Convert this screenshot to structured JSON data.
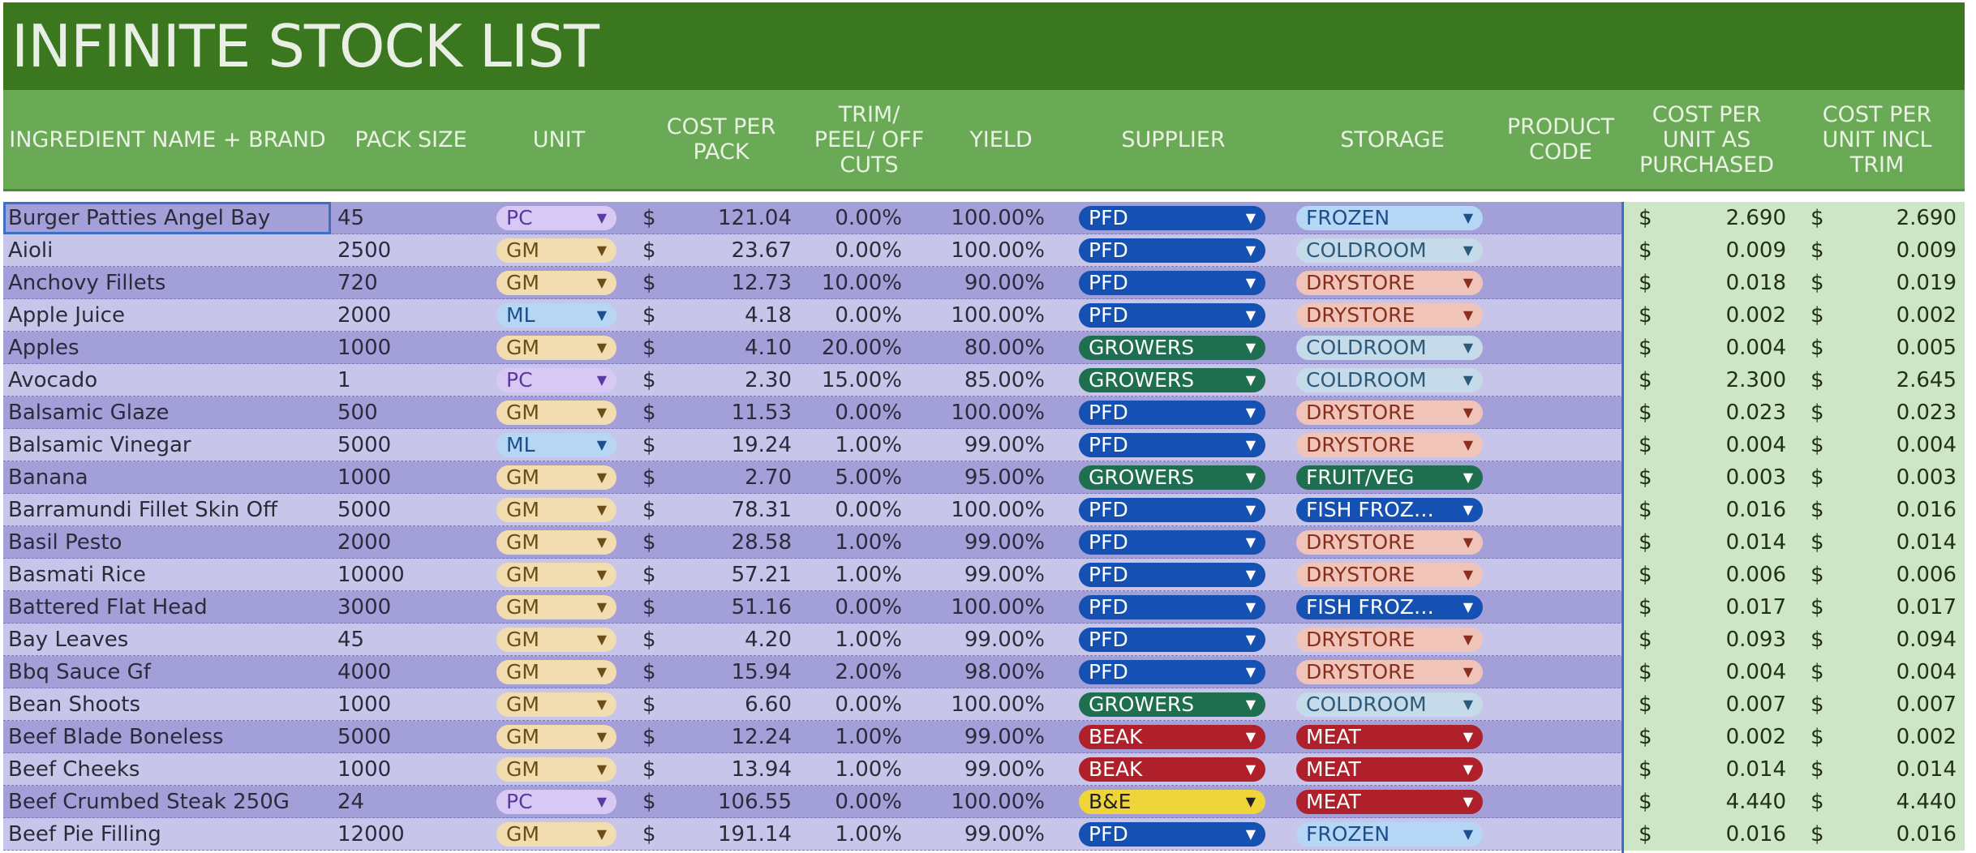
{
  "sheet": {
    "title": "INFINITE STOCK LIST"
  },
  "columns": {
    "name": "INGREDIENT NAME + BRAND",
    "pack_size": "PACK SIZE",
    "unit": "UNIT",
    "cost_per_pack": [
      "COST PER",
      "PACK"
    ],
    "trim": [
      "TRIM/",
      "PEEL/ OFF",
      "CUTS"
    ],
    "yield": "YIELD",
    "supplier": "SUPPLIER",
    "storage": "STORAGE",
    "product_code": [
      "PRODUCT",
      "CODE"
    ],
    "cost_unit_purchased": [
      "COST PER",
      "UNIT AS",
      "PURCHASED"
    ],
    "cost_unit_trim": [
      "COST PER",
      "UNIT INCL",
      "TRIM"
    ]
  },
  "currency_symbol": "$",
  "colors": {
    "unit": {
      "PC": [
        "#d8c9f4",
        "#5a3aa0"
      ],
      "GM": [
        "#f1ddb0",
        "#6b4e16"
      ],
      "ML": [
        "#b6d6f4",
        "#1d4f8c"
      ]
    },
    "supplier": {
      "PFD": "#1550b3",
      "GROWERS": "#1e6e50",
      "BEAK": "#b0202a",
      "B&E": "#f0d53a"
    },
    "storage": {
      "FROZEN": [
        "#b5d6f4",
        "#1d4f8c"
      ],
      "COLDROOM": [
        "#c6dbea",
        "#2b5a7a"
      ],
      "DRYSTORE": [
        "#f0c4b8",
        "#8a2f1e"
      ],
      "FRUIT/VEG": [
        "#1e6e50",
        "#ffffff"
      ],
      "FISH FROZ…": [
        "#1550b3",
        "#ffffff"
      ],
      "MEAT": [
        "#b0202a",
        "#ffffff"
      ]
    }
  },
  "rows": [
    {
      "name": "Burger Patties Angel Bay",
      "pack": "45",
      "unit": "PC",
      "cost": "121.04",
      "trim": "0.00%",
      "yield": "100.00%",
      "supplier": "PFD",
      "storage": "FROZEN",
      "cpu": "2.690",
      "cpt": "2.690"
    },
    {
      "name": "Aioli",
      "pack": "2500",
      "unit": "GM",
      "cost": "23.67",
      "trim": "0.00%",
      "yield": "100.00%",
      "supplier": "PFD",
      "storage": "COLDROOM",
      "cpu": "0.009",
      "cpt": "0.009"
    },
    {
      "name": "Anchovy Fillets",
      "pack": "720",
      "unit": "GM",
      "cost": "12.73",
      "trim": "10.00%",
      "yield": "90.00%",
      "supplier": "PFD",
      "storage": "DRYSTORE",
      "cpu": "0.018",
      "cpt": "0.019"
    },
    {
      "name": "Apple Juice",
      "pack": "2000",
      "unit": "ML",
      "cost": "4.18",
      "trim": "0.00%",
      "yield": "100.00%",
      "supplier": "PFD",
      "storage": "DRYSTORE",
      "cpu": "0.002",
      "cpt": "0.002"
    },
    {
      "name": "Apples",
      "pack": "1000",
      "unit": "GM",
      "cost": "4.10",
      "trim": "20.00%",
      "yield": "80.00%",
      "supplier": "GROWERS",
      "storage": "COLDROOM",
      "cpu": "0.004",
      "cpt": "0.005"
    },
    {
      "name": "Avocado",
      "pack": "1",
      "unit": "PC",
      "cost": "2.30",
      "trim": "15.00%",
      "yield": "85.00%",
      "supplier": "GROWERS",
      "storage": "COLDROOM",
      "cpu": "2.300",
      "cpt": "2.645"
    },
    {
      "name": "Balsamic Glaze",
      "pack": "500",
      "unit": "GM",
      "cost": "11.53",
      "trim": "0.00%",
      "yield": "100.00%",
      "supplier": "PFD",
      "storage": "DRYSTORE",
      "cpu": "0.023",
      "cpt": "0.023"
    },
    {
      "name": "Balsamic Vinegar",
      "pack": "5000",
      "unit": "ML",
      "cost": "19.24",
      "trim": "1.00%",
      "yield": "99.00%",
      "supplier": "PFD",
      "storage": "DRYSTORE",
      "cpu": "0.004",
      "cpt": "0.004"
    },
    {
      "name": "Banana",
      "pack": "1000",
      "unit": "GM",
      "cost": "2.70",
      "trim": "5.00%",
      "yield": "95.00%",
      "supplier": "GROWERS",
      "storage": "FRUIT/VEG",
      "cpu": "0.003",
      "cpt": "0.003"
    },
    {
      "name": "Barramundi Fillet Skin Off",
      "pack": "5000",
      "unit": "GM",
      "cost": "78.31",
      "trim": "0.00%",
      "yield": "100.00%",
      "supplier": "PFD",
      "storage": "FISH FROZ…",
      "cpu": "0.016",
      "cpt": "0.016"
    },
    {
      "name": "Basil Pesto",
      "pack": "2000",
      "unit": "GM",
      "cost": "28.58",
      "trim": "1.00%",
      "yield": "99.00%",
      "supplier": "PFD",
      "storage": "DRYSTORE",
      "cpu": "0.014",
      "cpt": "0.014"
    },
    {
      "name": "Basmati Rice",
      "pack": "10000",
      "unit": "GM",
      "cost": "57.21",
      "trim": "1.00%",
      "yield": "99.00%",
      "supplier": "PFD",
      "storage": "DRYSTORE",
      "cpu": "0.006",
      "cpt": "0.006"
    },
    {
      "name": "Battered Flat Head",
      "pack": "3000",
      "unit": "GM",
      "cost": "51.16",
      "trim": "0.00%",
      "yield": "100.00%",
      "supplier": "PFD",
      "storage": "FISH FROZ…",
      "cpu": "0.017",
      "cpt": "0.017"
    },
    {
      "name": "Bay Leaves",
      "pack": "45",
      "unit": "GM",
      "cost": "4.20",
      "trim": "1.00%",
      "yield": "99.00%",
      "supplier": "PFD",
      "storage": "DRYSTORE",
      "cpu": "0.093",
      "cpt": "0.094"
    },
    {
      "name": "Bbq Sauce Gf",
      "pack": "4000",
      "unit": "GM",
      "cost": "15.94",
      "trim": "2.00%",
      "yield": "98.00%",
      "supplier": "PFD",
      "storage": "DRYSTORE",
      "cpu": "0.004",
      "cpt": "0.004"
    },
    {
      "name": "Bean Shoots",
      "pack": "1000",
      "unit": "GM",
      "cost": "6.60",
      "trim": "0.00%",
      "yield": "100.00%",
      "supplier": "GROWERS",
      "storage": "COLDROOM",
      "cpu": "0.007",
      "cpt": "0.007"
    },
    {
      "name": "Beef Blade Boneless",
      "pack": "5000",
      "unit": "GM",
      "cost": "12.24",
      "trim": "1.00%",
      "yield": "99.00%",
      "supplier": "BEAK",
      "storage": "MEAT",
      "cpu": "0.002",
      "cpt": "0.002"
    },
    {
      "name": "Beef Cheeks",
      "pack": "1000",
      "unit": "GM",
      "cost": "13.94",
      "trim": "1.00%",
      "yield": "99.00%",
      "supplier": "BEAK",
      "storage": "MEAT",
      "cpu": "0.014",
      "cpt": "0.014"
    },
    {
      "name": "Beef Crumbed Steak 250G",
      "pack": "24",
      "unit": "PC",
      "cost": "106.55",
      "trim": "0.00%",
      "yield": "100.00%",
      "supplier": "B&E",
      "storage": "MEAT",
      "cpu": "4.440",
      "cpt": "4.440"
    },
    {
      "name": "Beef Pie Filling",
      "pack": "12000",
      "unit": "GM",
      "cost": "191.14",
      "trim": "1.00%",
      "yield": "99.00%",
      "supplier": "PFD",
      "storage": "FROZEN",
      "cpu": "0.016",
      "cpt": "0.016"
    }
  ]
}
